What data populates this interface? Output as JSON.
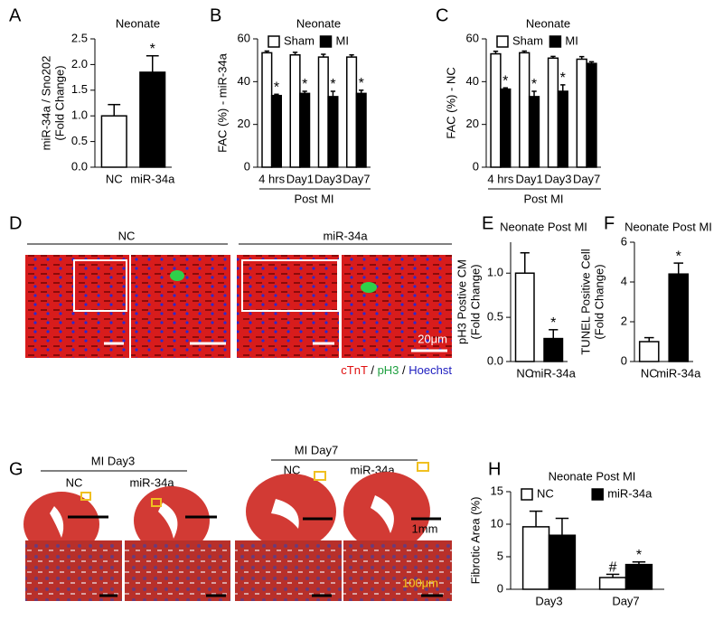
{
  "chart_data": [
    {
      "type": "bar",
      "panel": "A",
      "title": "Neonate",
      "ylabel": [
        "miR-34a / Sno202",
        "(Fold Change)"
      ],
      "categories": [
        "NC",
        "miR-34a"
      ],
      "values": [
        1.0,
        1.85
      ],
      "errors": [
        0.22,
        0.32
      ],
      "annotations": [
        null,
        "*"
      ],
      "colors": [
        "#ffffff",
        "#000000"
      ],
      "ylim": [
        0,
        2.5
      ],
      "yticks": [
        {
          "value": 0,
          "label": "0.0"
        },
        0.5,
        {
          "value": 1,
          "label": "1.0"
        },
        1.5,
        {
          "value": 2,
          "label": "2.0"
        },
        2.5
      ]
    },
    {
      "type": "bar",
      "panel": "B",
      "title": "Neonate",
      "ylabel": [
        "FAC (%) - miR-34a"
      ],
      "xlabel": "Post MI",
      "categories": [
        "4 hrs",
        "Day1",
        "Day3",
        "Day7"
      ],
      "series": [
        {
          "name": "Sham",
          "color": "#ffffff",
          "values": [
            53.5,
            52.5,
            51.5,
            51.5
          ],
          "errors": [
            0.8,
            1.2,
            1.3,
            1.0
          ],
          "annotations": [
            null,
            null,
            null,
            null
          ]
        },
        {
          "name": "MI",
          "color": "#000000",
          "values": [
            33.5,
            34.5,
            33,
            34.5
          ],
          "errors": [
            0.6,
            1.0,
            2.5,
            1.5
          ],
          "annotations": [
            "*",
            "*",
            "*",
            "*"
          ]
        }
      ],
      "ylim": [
        0,
        60
      ],
      "yticks": [
        0,
        20,
        40,
        60
      ]
    },
    {
      "type": "bar",
      "panel": "C",
      "title": "Neonate",
      "ylabel": [
        "FAC (%) - NC"
      ],
      "xlabel": "Post MI",
      "categories": [
        "4 hrs",
        "Day1",
        "Day3",
        "Day7"
      ],
      "series": [
        {
          "name": "Sham",
          "color": "#ffffff",
          "values": [
            53,
            53.5,
            51,
            50.5
          ],
          "errors": [
            1.2,
            0.8,
            0.8,
            1.2
          ],
          "annotations": [
            null,
            null,
            null,
            null
          ]
        },
        {
          "name": "MI",
          "color": "#000000",
          "values": [
            36.5,
            33,
            35.5,
            48.5
          ],
          "errors": [
            0.6,
            2.5,
            3.0,
            0.8
          ],
          "annotations": [
            "*",
            "*",
            "*",
            null
          ]
        }
      ],
      "ylim": [
        0,
        60
      ],
      "yticks": [
        0,
        20,
        40,
        60
      ]
    },
    {
      "type": "bar",
      "panel": "E",
      "title": "Neonate Post MI",
      "ylabel": [
        "pH3 Postive CM",
        "(Fold Change)"
      ],
      "categories": [
        "NC",
        "miR-34a"
      ],
      "values": [
        1.0,
        0.26
      ],
      "errors": [
        0.23,
        0.1
      ],
      "annotations": [
        null,
        "*"
      ],
      "colors": [
        "#ffffff",
        "#000000"
      ],
      "ylim": [
        0,
        1.35
      ],
      "yticks": [
        {
          "value": 0,
          "label": "0.0"
        },
        0.5,
        {
          "value": 1,
          "label": "1.0"
        }
      ]
    },
    {
      "type": "bar",
      "panel": "F",
      "title": "Neonate Post MI",
      "ylabel": [
        "TUNEL Positive Cell",
        "(Fold Change)"
      ],
      "categories": [
        "NC",
        "miR-34a"
      ],
      "values": [
        1.0,
        4.4
      ],
      "errors": [
        0.2,
        0.55
      ],
      "annotations": [
        null,
        "*"
      ],
      "colors": [
        "#ffffff",
        "#000000"
      ],
      "ylim": [
        0,
        6
      ],
      "yticks": [
        0,
        2,
        4,
        6
      ]
    },
    {
      "type": "bar",
      "panel": "H",
      "title": "Neonate Post MI",
      "ylabel": [
        "Fibrotic Area (%)"
      ],
      "categories": [
        "Day3",
        "Day7"
      ],
      "series": [
        {
          "name": "NC",
          "color": "#ffffff",
          "values": [
            9.6,
            1.8
          ],
          "errors": [
            2.4,
            0.5
          ],
          "annotations": [
            null,
            "#"
          ]
        },
        {
          "name": "miR-34a",
          "color": "#000000",
          "values": [
            8.3,
            3.8
          ],
          "errors": [
            2.6,
            0.4
          ],
          "annotations": [
            null,
            "*"
          ]
        }
      ],
      "ylim": [
        0,
        15
      ],
      "yticks": [
        0,
        5,
        10,
        15
      ]
    }
  ],
  "image_panels": [
    {
      "panel": "D",
      "groups": [
        "NC",
        "miR-34a"
      ],
      "scale": "20μm",
      "legend": [
        "cTnT",
        "/",
        "pH3",
        "/",
        "Hoechst"
      ]
    },
    {
      "panel": "G",
      "groups": [
        "MI Day3",
        "MI Day7"
      ],
      "subgroups": [
        "NC",
        "miR-34a",
        "NC",
        "miR-34a"
      ],
      "scales": [
        "1mm",
        "100μm"
      ]
    }
  ]
}
